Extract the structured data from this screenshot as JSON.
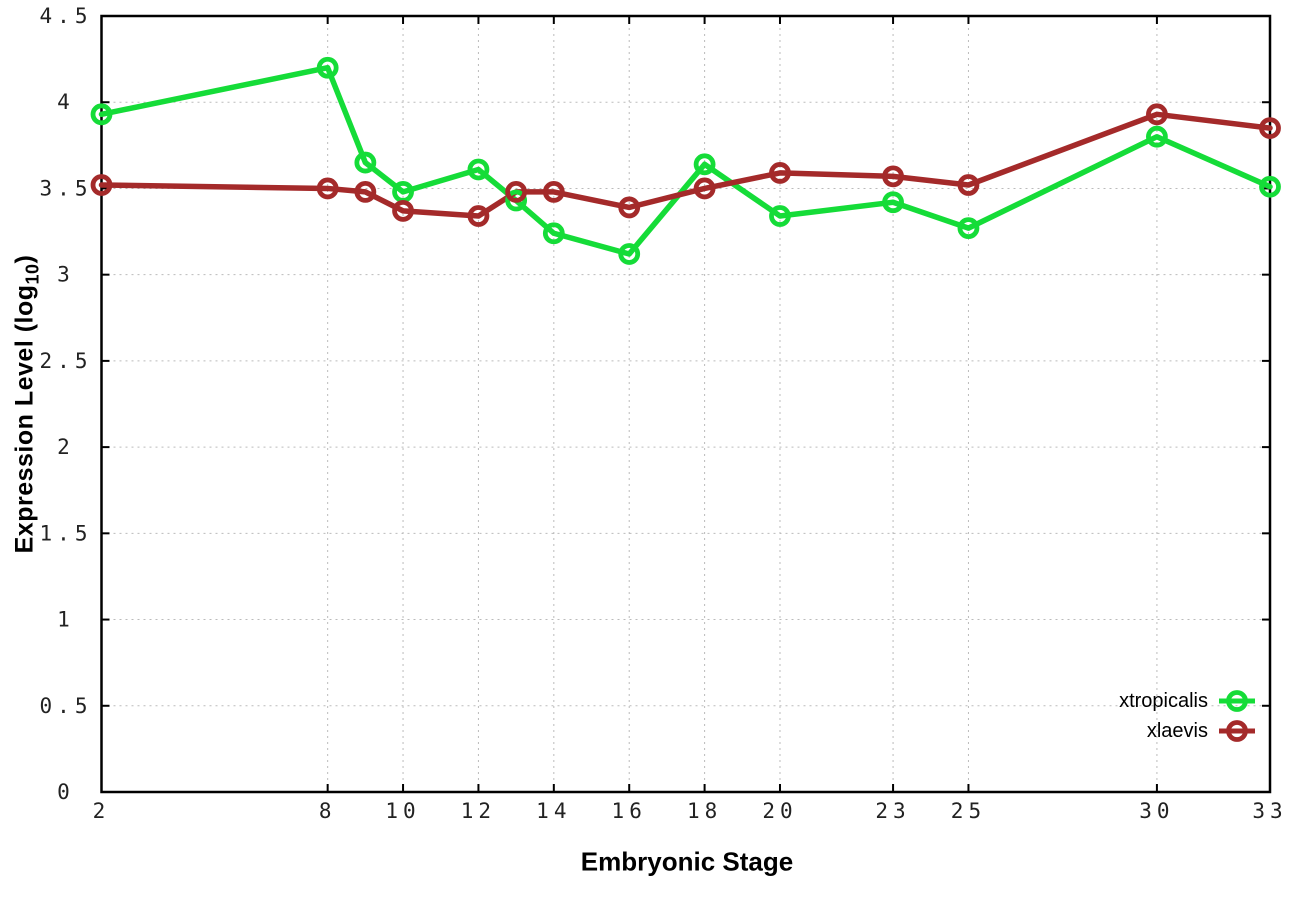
{
  "chart_data": {
    "type": "line",
    "title": "",
    "xlabel": "Embryonic Stage",
    "ylabel_parts": {
      "prefix": "Expression Level (log",
      "sub": "10",
      "suffix": ")"
    },
    "x": [
      2,
      8,
      9,
      10,
      12,
      13,
      14,
      16,
      18,
      20,
      23,
      25,
      30,
      33
    ],
    "series": [
      {
        "name": "xtropicalis",
        "color": "#15DC38",
        "values": [
          3.93,
          4.2,
          3.65,
          3.48,
          3.61,
          3.43,
          3.24,
          3.12,
          3.64,
          3.34,
          3.42,
          3.27,
          3.8,
          3.51
        ]
      },
      {
        "name": "xlaevis",
        "color": "#A42A2A",
        "values": [
          3.52,
          3.5,
          3.48,
          3.37,
          3.34,
          3.48,
          3.48,
          3.39,
          3.5,
          3.59,
          3.57,
          3.52,
          3.93,
          3.85
        ]
      }
    ],
    "xlim": [
      2,
      33
    ],
    "ylim": [
      0,
      4.5
    ],
    "x_tick_labels": [
      "2",
      "8",
      "10",
      "12",
      "14",
      "16",
      "18",
      "20",
      "23",
      "25",
      "30",
      "33"
    ],
    "x_tick_values": [
      2,
      8,
      10,
      12,
      14,
      16,
      18,
      20,
      23,
      25,
      30,
      33
    ],
    "y_tick_labels": [
      "0",
      "0.5",
      "1",
      "1.5",
      "2",
      "2.5",
      "3",
      "3.5",
      "4",
      "4.5"
    ],
    "y_tick_values": [
      0,
      0.5,
      1,
      1.5,
      2,
      2.5,
      3,
      3.5,
      4,
      4.5
    ],
    "grid": true,
    "legend_position": "inside-bottom-right",
    "marker": "open-circle"
  },
  "colors": {
    "grid": "#BBBBBB",
    "frame": "#000000",
    "tick_text": "#222222",
    "title_text": "#000000"
  }
}
